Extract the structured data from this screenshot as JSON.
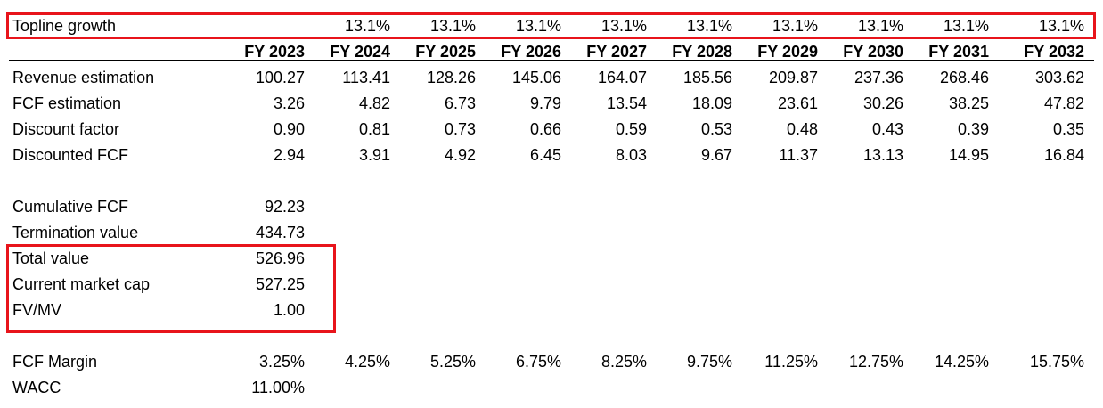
{
  "topline": {
    "label": "Topline growth",
    "values": [
      "13.1%",
      "13.1%",
      "13.1%",
      "13.1%",
      "13.1%",
      "13.1%",
      "13.1%",
      "13.1%",
      "13.1%"
    ]
  },
  "years": [
    "FY 2023",
    "FY 2024",
    "FY 2025",
    "FY 2026",
    "FY 2027",
    "FY 2028",
    "FY 2029",
    "FY 2030",
    "FY 2031",
    "FY 2032"
  ],
  "estimates": [
    {
      "label": "Revenue estimation",
      "values": [
        "100.27",
        "113.41",
        "128.26",
        "145.06",
        "164.07",
        "185.56",
        "209.87",
        "237.36",
        "268.46",
        "303.62"
      ]
    },
    {
      "label": "FCF estimation",
      "values": [
        "3.26",
        "4.82",
        "6.73",
        "9.79",
        "13.54",
        "18.09",
        "23.61",
        "30.26",
        "38.25",
        "47.82"
      ]
    },
    {
      "label": "Discount factor",
      "values": [
        "0.90",
        "0.81",
        "0.73",
        "0.66",
        "0.59",
        "0.53",
        "0.48",
        "0.43",
        "0.39",
        "0.35"
      ]
    },
    {
      "label": "Discounted FCF",
      "values": [
        "2.94",
        "3.91",
        "4.92",
        "6.45",
        "8.03",
        "9.67",
        "11.37",
        "13.13",
        "14.95",
        "16.84"
      ]
    }
  ],
  "summary": [
    {
      "label": "Cumulative FCF",
      "value": "92.23"
    },
    {
      "label": "Termination value",
      "value": "434.73"
    },
    {
      "label": "Total value",
      "value": "526.96"
    },
    {
      "label": "Current market cap",
      "value": "527.25"
    },
    {
      "label": "FV/MV",
      "value": "1.00"
    }
  ],
  "assumptions": [
    {
      "label": "FCF Margin",
      "values": [
        "3.25%",
        "4.25%",
        "5.25%",
        "6.75%",
        "8.25%",
        "9.75%",
        "11.25%",
        "12.75%",
        "14.25%",
        "15.75%"
      ]
    },
    {
      "label": "WACC",
      "values": [
        "11.00%"
      ]
    }
  ],
  "highlight_color": "#e8141b"
}
